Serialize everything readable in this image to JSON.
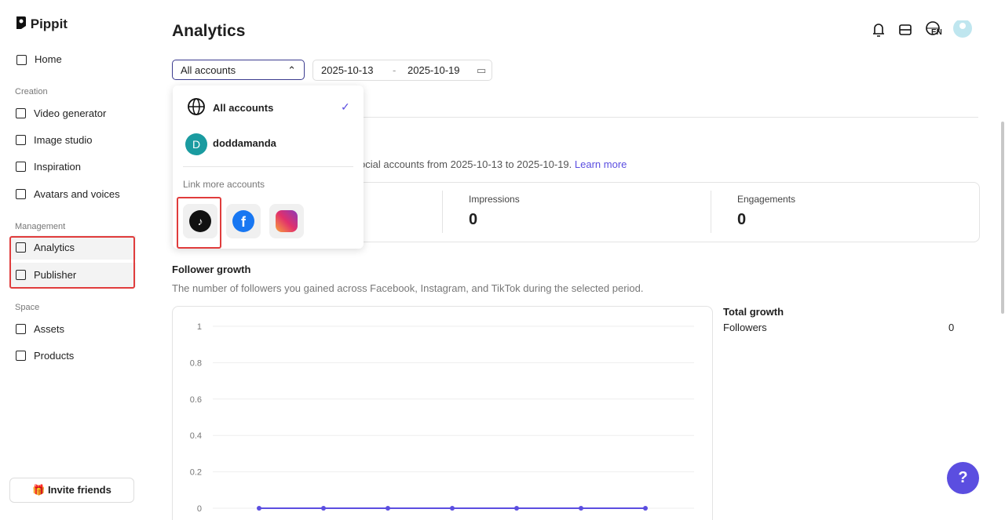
{
  "sidebar": {
    "logo": "Pippit",
    "home": "Home",
    "sections": [
      {
        "title": "Creation",
        "items": [
          "Video generator",
          "Image studio",
          "Inspiration",
          "Avatars and voices"
        ]
      },
      {
        "title": "Management",
        "items": [
          "Analytics",
          "Publisher"
        ]
      },
      {
        "title": "Space",
        "items": [
          "Assets",
          "Products"
        ]
      }
    ],
    "invite": "Invite friends"
  },
  "header": {
    "title": "Analytics",
    "language": "EN"
  },
  "filters": {
    "account": "All accounts",
    "date_start": "2025-10-13",
    "separator": "-",
    "date_end": "2025-10-19"
  },
  "dropdown": {
    "all_accounts": "All accounts",
    "account_initial": "D",
    "account_name": "doddamanda",
    "link_more": "Link more accounts"
  },
  "summary": {
    "text": "ocial accounts from 2025-10-13 to 2025-10-19.",
    "link": "Learn more"
  },
  "metrics": [
    {
      "label": "Impressions",
      "value": 0
    },
    {
      "label": "Engagements",
      "value": 0
    }
  ],
  "follower_growth": {
    "title": "Follower growth",
    "description": "The number of followers you gained across Facebook, Instagram, and TikTok during the selected period.",
    "total_title": "Total growth",
    "total_label": "Followers",
    "total_value": 0
  },
  "chart_data": {
    "type": "line",
    "categories": [
      null,
      null,
      null,
      null,
      null,
      null,
      null
    ],
    "series": [
      {
        "color": "#5b4ee0",
        "values": [
          0,
          0,
          0,
          0,
          0,
          0,
          0
        ]
      }
    ],
    "ylim": [
      0,
      1
    ],
    "yticks": [
      0,
      0.2,
      0.4,
      0.6,
      0.8,
      1
    ],
    "grid": true
  }
}
